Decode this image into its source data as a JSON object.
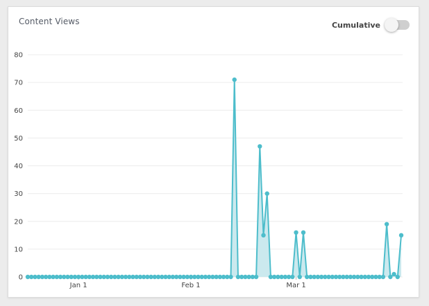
{
  "card": {
    "title": "Content Views",
    "cumulative_label": "Cumulative",
    "cumulative_on": false
  },
  "chart_data": {
    "type": "area",
    "title": "Content Views",
    "xlabel": "",
    "ylabel": "",
    "ylim": [
      0,
      80
    ],
    "y_ticks": [
      0,
      10,
      20,
      30,
      40,
      50,
      60,
      70,
      80
    ],
    "x_ticks": [
      {
        "label": "Jan 1",
        "index": 14
      },
      {
        "label": "Feb 1",
        "index": 45
      },
      {
        "label": "Mar 1",
        "index": 74
      }
    ],
    "grid": true,
    "colors": {
      "line": "#4dbdcb",
      "fill": "#cbe9ee",
      "grid": "#ececec"
    },
    "series": [
      {
        "values": [
          0,
          0,
          0,
          0,
          0,
          0,
          0,
          0,
          0,
          0,
          0,
          0,
          0,
          0,
          0,
          0,
          0,
          0,
          0,
          0,
          0,
          0,
          0,
          0,
          0,
          0,
          0,
          0,
          0,
          0,
          0,
          0,
          0,
          0,
          0,
          0,
          0,
          0,
          0,
          0,
          0,
          0,
          0,
          0,
          0,
          0,
          0,
          0,
          0,
          0,
          0,
          0,
          0,
          0,
          0,
          0,
          0,
          71,
          0,
          0,
          0,
          0,
          0,
          0,
          47,
          15,
          30,
          0,
          0,
          0,
          0,
          0,
          0,
          0,
          16,
          0,
          16,
          0,
          0,
          0,
          0,
          0,
          0,
          0,
          0,
          0,
          0,
          0,
          0,
          0,
          0,
          0,
          0,
          0,
          0,
          0,
          0,
          0,
          0,
          19,
          0,
          1,
          0,
          15
        ]
      }
    ]
  }
}
